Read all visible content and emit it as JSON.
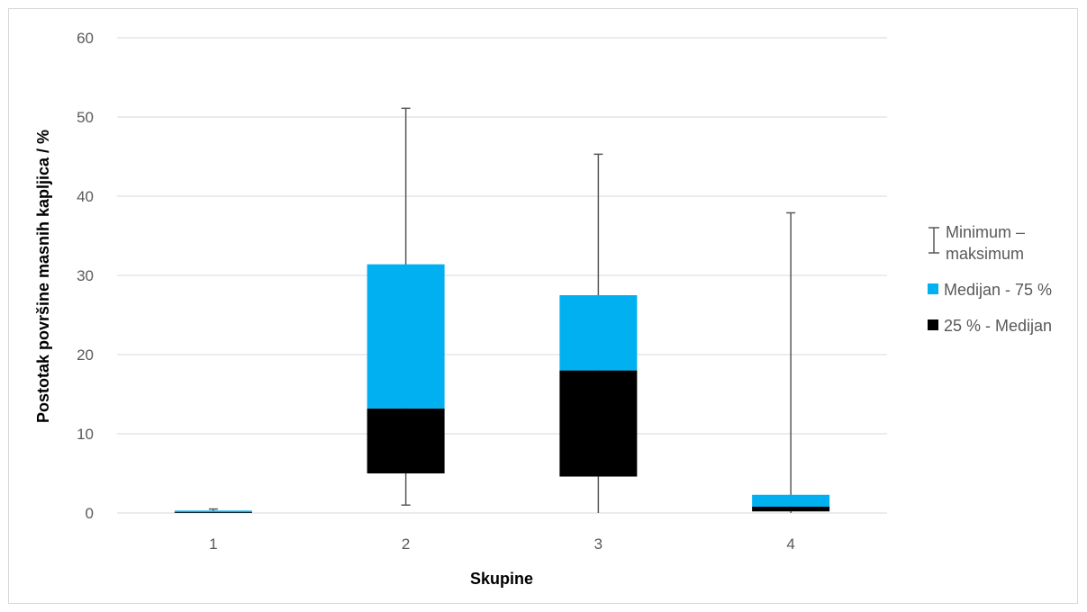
{
  "chart_data": {
    "type": "box",
    "categories": [
      "1",
      "2",
      "3",
      "4"
    ],
    "boxes": [
      {
        "category": "1",
        "min": 0.0,
        "q1": 0.0,
        "median": 0.1,
        "q3": 0.3,
        "max": 0.5
      },
      {
        "category": "2",
        "min": 1.0,
        "q1": 5.0,
        "median": 13.2,
        "q3": 31.4,
        "max": 51.1
      },
      {
        "category": "3",
        "min": 0.0,
        "q1": 4.6,
        "median": 18.0,
        "q3": 27.5,
        "max": 45.3
      },
      {
        "category": "4",
        "min": 0.0,
        "q1": 0.2,
        "median": 0.8,
        "q3": 2.3,
        "max": 37.9
      }
    ],
    "ylim": [
      0,
      60
    ],
    "yticks": [
      0,
      10,
      20,
      30,
      40,
      50,
      60
    ],
    "ytick_labels": [
      "0",
      "10",
      "20",
      "30",
      "40",
      "50",
      "60"
    ],
    "xlabel": "Skupine",
    "ylabel": "Postotak površine masnih kapljica / %",
    "grid": true,
    "legend_position": "right",
    "legend": [
      {
        "type": "whisker",
        "label": "Minimum – maksimum",
        "color": "#595959"
      },
      {
        "type": "swatch",
        "label": "Medijan - 75 %",
        "color": "#00b0f0"
      },
      {
        "type": "swatch",
        "label": "25 % - Medijan",
        "color": "#000000"
      }
    ],
    "colors": {
      "upper_box": "#00b0f0",
      "lower_box": "#000000",
      "whisker": "#595959",
      "grid": "#d9d9d9"
    }
  }
}
